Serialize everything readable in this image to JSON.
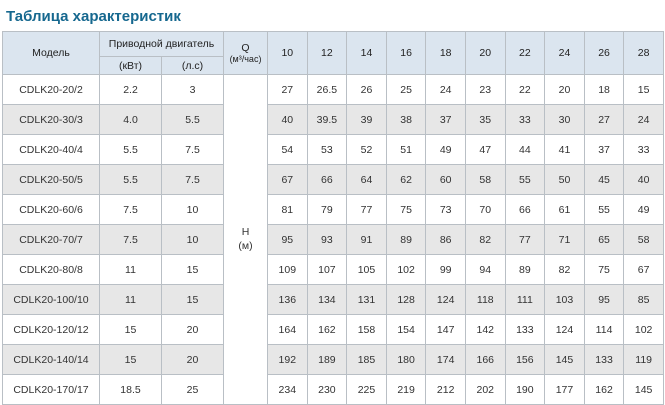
{
  "title": "Таблица характеристик",
  "colors": {
    "title": "#16688f",
    "header_bg": "#dbe5ef",
    "stripe_bg": "#e7e7e7",
    "border": "#b9bfc5"
  },
  "table": {
    "headers": {
      "model": "Модель",
      "motor_group": "Приводной двигатель",
      "motor_kw": "(кВт)",
      "motor_hp": "(л.с)",
      "q_label": "Q",
      "q_unit": "(м³/час)",
      "h_label": "H",
      "h_unit": "(м)",
      "flow_columns": [
        "10",
        "12",
        "14",
        "16",
        "18",
        "20",
        "22",
        "24",
        "26",
        "28"
      ]
    },
    "rows": [
      {
        "model": "CDLK20-20/2",
        "kw": "2.2",
        "hp": "3",
        "values": [
          "27",
          "26.5",
          "26",
          "25",
          "24",
          "23",
          "22",
          "20",
          "18",
          "15"
        ]
      },
      {
        "model": "CDLK20-30/3",
        "kw": "4.0",
        "hp": "5.5",
        "values": [
          "40",
          "39.5",
          "39",
          "38",
          "37",
          "35",
          "33",
          "30",
          "27",
          "24"
        ]
      },
      {
        "model": "CDLK20-40/4",
        "kw": "5.5",
        "hp": "7.5",
        "values": [
          "54",
          "53",
          "52",
          "51",
          "49",
          "47",
          "44",
          "41",
          "37",
          "33"
        ]
      },
      {
        "model": "CDLK20-50/5",
        "kw": "5.5",
        "hp": "7.5",
        "values": [
          "67",
          "66",
          "64",
          "62",
          "60",
          "58",
          "55",
          "50",
          "45",
          "40"
        ]
      },
      {
        "model": "CDLK20-60/6",
        "kw": "7.5",
        "hp": "10",
        "values": [
          "81",
          "79",
          "77",
          "75",
          "73",
          "70",
          "66",
          "61",
          "55",
          "49"
        ]
      },
      {
        "model": "CDLK20-70/7",
        "kw": "7.5",
        "hp": "10",
        "values": [
          "95",
          "93",
          "91",
          "89",
          "86",
          "82",
          "77",
          "71",
          "65",
          "58"
        ]
      },
      {
        "model": "CDLK20-80/8",
        "kw": "11",
        "hp": "15",
        "values": [
          "109",
          "107",
          "105",
          "102",
          "99",
          "94",
          "89",
          "82",
          "75",
          "67"
        ]
      },
      {
        "model": "CDLK20-100/10",
        "kw": "11",
        "hp": "15",
        "values": [
          "136",
          "134",
          "131",
          "128",
          "124",
          "118",
          "111",
          "103",
          "95",
          "85"
        ]
      },
      {
        "model": "CDLK20-120/12",
        "kw": "15",
        "hp": "20",
        "values": [
          "164",
          "162",
          "158",
          "154",
          "147",
          "142",
          "133",
          "124",
          "114",
          "102"
        ]
      },
      {
        "model": "CDLK20-140/14",
        "kw": "15",
        "hp": "20",
        "values": [
          "192",
          "189",
          "185",
          "180",
          "174",
          "166",
          "156",
          "145",
          "133",
          "119"
        ]
      },
      {
        "model": "CDLK20-170/17",
        "kw": "18.5",
        "hp": "25",
        "values": [
          "234",
          "230",
          "225",
          "219",
          "212",
          "202",
          "190",
          "177",
          "162",
          "145"
        ]
      }
    ]
  }
}
